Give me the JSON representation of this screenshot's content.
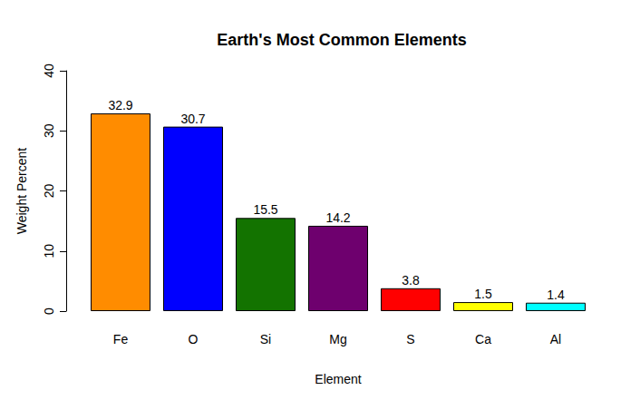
{
  "chart_data": {
    "type": "bar",
    "title": "Earth's Most Common Elements",
    "x_label": "Element",
    "y_label": "Weight Percent",
    "categories": [
      "Fe",
      "O",
      "Si",
      "Mg",
      "S",
      "Ca",
      "Al"
    ],
    "values": [
      32.9,
      30.7,
      15.5,
      14.2,
      3.8,
      1.5,
      1.4
    ],
    "colors": [
      "#ff8c00",
      "#0000ff",
      "#137300",
      "#6e006e",
      "#ff0000",
      "#ffff00",
      "#00ffff"
    ],
    "ylim": [
      0,
      40
    ],
    "yticks": [
      0,
      10,
      20,
      30,
      40
    ],
    "grid": false,
    "data_labels": true
  }
}
